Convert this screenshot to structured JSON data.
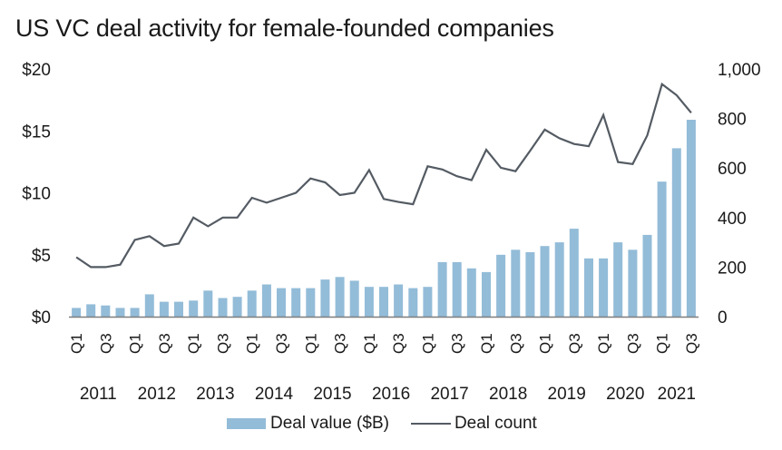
{
  "chart_data": {
    "type": "bar+line",
    "title": "US VC deal activity for female-founded companies",
    "xlabel": "",
    "ylabel_left": "",
    "ylabel_right": "",
    "years": [
      "2011",
      "2012",
      "2013",
      "2014",
      "2015",
      "2016",
      "2017",
      "2018",
      "2019",
      "2020",
      "2021"
    ],
    "quarter_tick_labels": [
      "Q1",
      "Q3"
    ],
    "categories": [
      "2011 Q1",
      "2011 Q2",
      "2011 Q3",
      "2011 Q4",
      "2012 Q1",
      "2012 Q2",
      "2012 Q3",
      "2012 Q4",
      "2013 Q1",
      "2013 Q2",
      "2013 Q3",
      "2013 Q4",
      "2014 Q1",
      "2014 Q2",
      "2014 Q3",
      "2014 Q4",
      "2015 Q1",
      "2015 Q2",
      "2015 Q3",
      "2015 Q4",
      "2016 Q1",
      "2016 Q2",
      "2016 Q3",
      "2016 Q4",
      "2017 Q1",
      "2017 Q2",
      "2017 Q3",
      "2017 Q4",
      "2018 Q1",
      "2018 Q2",
      "2018 Q3",
      "2018 Q4",
      "2019 Q1",
      "2019 Q2",
      "2019 Q3",
      "2019 Q4",
      "2020 Q1",
      "2020 Q2",
      "2020 Q3",
      "2020 Q4",
      "2021 Q1",
      "2021 Q2",
      "2021 Q3"
    ],
    "series": [
      {
        "name": "Deal value ($B)",
        "type": "bar",
        "axis": "left",
        "color": "#93bcd8",
        "values": [
          0.7,
          1.0,
          0.9,
          0.7,
          0.7,
          1.8,
          1.2,
          1.2,
          1.3,
          2.1,
          1.5,
          1.6,
          2.1,
          2.6,
          2.3,
          2.3,
          2.3,
          3.0,
          3.2,
          2.9,
          2.4,
          2.4,
          2.6,
          2.3,
          2.4,
          4.4,
          4.4,
          3.9,
          3.6,
          5.0,
          5.4,
          5.2,
          5.7,
          6.0,
          7.1,
          4.7,
          4.7,
          6.0,
          5.4,
          6.6,
          10.9,
          13.6,
          15.9
        ]
      },
      {
        "name": "Deal count",
        "type": "line",
        "axis": "right",
        "color": "#545b63",
        "values": [
          240,
          200,
          200,
          210,
          310,
          325,
          285,
          295,
          400,
          365,
          400,
          400,
          480,
          460,
          480,
          500,
          558,
          542,
          491,
          500,
          592,
          475,
          463,
          454,
          607,
          594,
          567,
          551,
          674,
          601,
          587,
          670,
          755,
          720,
          697,
          688,
          814,
          624,
          616,
          732,
          939,
          894,
          823
        ]
      }
    ],
    "y_left": {
      "range": [
        0,
        20
      ],
      "ticks": [
        0,
        5,
        10,
        15,
        20
      ],
      "tick_labels": [
        "$0",
        "$5",
        "$10",
        "$15",
        "$20"
      ]
    },
    "y_right": {
      "range": [
        0,
        1000
      ],
      "ticks": [
        0,
        200,
        400,
        600,
        800,
        1000
      ],
      "tick_labels": [
        "0",
        "200",
        "400",
        "600",
        "800",
        "1,000"
      ]
    },
    "grid": false,
    "legend": {
      "placement": "bottom-center",
      "entries": [
        "Deal value ($B)",
        "Deal count"
      ]
    }
  }
}
